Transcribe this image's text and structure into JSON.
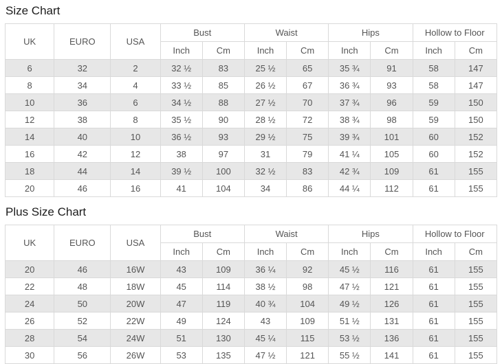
{
  "colors": {
    "stripe": "#e7e7e7",
    "border": "#d9d9d9",
    "cell_text": "#555555",
    "title_text": "#1c1c1c",
    "background": "#ffffff"
  },
  "header": {
    "uk": "UK",
    "euro": "EURO",
    "usa": "USA",
    "bust": "Bust",
    "waist": "Waist",
    "hips": "Hips",
    "hollow_to_floor": "Hollow to Floor",
    "inch": "Inch",
    "cm": "Cm"
  },
  "tables": [
    {
      "title": "Size Chart",
      "rows": [
        [
          "6",
          "32",
          "2",
          "32 ½",
          "83",
          "25 ½",
          "65",
          "35 ¾",
          "91",
          "58",
          "147"
        ],
        [
          "8",
          "34",
          "4",
          "33 ½",
          "85",
          "26 ½",
          "67",
          "36 ¾",
          "93",
          "58",
          "147"
        ],
        [
          "10",
          "36",
          "6",
          "34 ½",
          "88",
          "27 ½",
          "70",
          "37 ¾",
          "96",
          "59",
          "150"
        ],
        [
          "12",
          "38",
          "8",
          "35 ½",
          "90",
          "28 ½",
          "72",
          "38 ¾",
          "98",
          "59",
          "150"
        ],
        [
          "14",
          "40",
          "10",
          "36 ½",
          "93",
          "29 ½",
          "75",
          "39 ¾",
          "101",
          "60",
          "152"
        ],
        [
          "16",
          "42",
          "12",
          "38",
          "97",
          "31",
          "79",
          "41 ¼",
          "105",
          "60",
          "152"
        ],
        [
          "18",
          "44",
          "14",
          "39 ½",
          "100",
          "32 ½",
          "83",
          "42 ¾",
          "109",
          "61",
          "155"
        ],
        [
          "20",
          "46",
          "16",
          "41",
          "104",
          "34",
          "86",
          "44 ¼",
          "112",
          "61",
          "155"
        ]
      ]
    },
    {
      "title": "Plus Size Chart",
      "rows": [
        [
          "20",
          "46",
          "16W",
          "43",
          "109",
          "36 ¼",
          "92",
          "45 ½",
          "116",
          "61",
          "155"
        ],
        [
          "22",
          "48",
          "18W",
          "45",
          "114",
          "38 ½",
          "98",
          "47 ½",
          "121",
          "61",
          "155"
        ],
        [
          "24",
          "50",
          "20W",
          "47",
          "119",
          "40 ¾",
          "104",
          "49 ½",
          "126",
          "61",
          "155"
        ],
        [
          "26",
          "52",
          "22W",
          "49",
          "124",
          "43",
          "109",
          "51 ½",
          "131",
          "61",
          "155"
        ],
        [
          "28",
          "54",
          "24W",
          "51",
          "130",
          "45 ¼",
          "115",
          "53 ½",
          "136",
          "61",
          "155"
        ],
        [
          "30",
          "56",
          "26W",
          "53",
          "135",
          "47 ½",
          "121",
          "55 ½",
          "141",
          "61",
          "155"
        ]
      ]
    }
  ]
}
